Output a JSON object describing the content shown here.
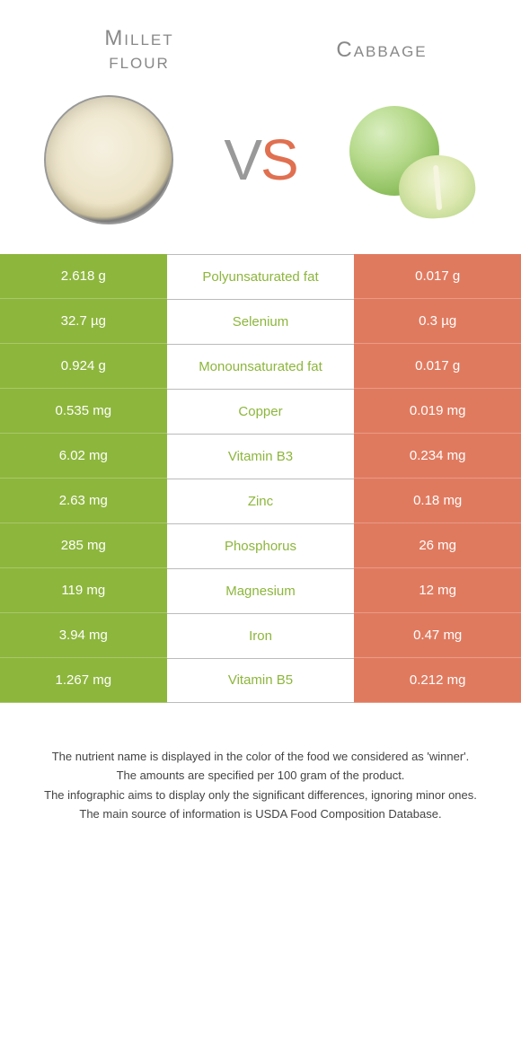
{
  "left_food": "Millet\nflour",
  "right_food": "Cabbage",
  "vs_text": "VS",
  "colors": {
    "left": "#8db63c",
    "right": "#e07a5f",
    "mid_border": "#bbbbbb",
    "title_text": "#888888"
  },
  "rows": [
    {
      "left": "2.618 g",
      "nutrient": "Polyunsaturated fat",
      "right": "0.017 g",
      "winner": "left"
    },
    {
      "left": "32.7 µg",
      "nutrient": "Selenium",
      "right": "0.3 µg",
      "winner": "left"
    },
    {
      "left": "0.924 g",
      "nutrient": "Monounsaturated fat",
      "right": "0.017 g",
      "winner": "left"
    },
    {
      "left": "0.535 mg",
      "nutrient": "Copper",
      "right": "0.019 mg",
      "winner": "left"
    },
    {
      "left": "6.02 mg",
      "nutrient": "Vitamin B3",
      "right": "0.234 mg",
      "winner": "left"
    },
    {
      "left": "2.63 mg",
      "nutrient": "Zinc",
      "right": "0.18 mg",
      "winner": "left"
    },
    {
      "left": "285 mg",
      "nutrient": "Phosphorus",
      "right": "26 mg",
      "winner": "left"
    },
    {
      "left": "119 mg",
      "nutrient": "Magnesium",
      "right": "12 mg",
      "winner": "left"
    },
    {
      "left": "3.94 mg",
      "nutrient": "Iron",
      "right": "0.47 mg",
      "winner": "left"
    },
    {
      "left": "1.267 mg",
      "nutrient": "Vitamin B5",
      "right": "0.212 mg",
      "winner": "left"
    }
  ],
  "footer": [
    "The nutrient name is displayed in the color of the food we considered as 'winner'.",
    "The amounts are specified per 100 gram of the product.",
    "The infographic aims to display only the significant differences, ignoring minor ones.",
    "The main source of information is USDA Food Composition Database."
  ]
}
